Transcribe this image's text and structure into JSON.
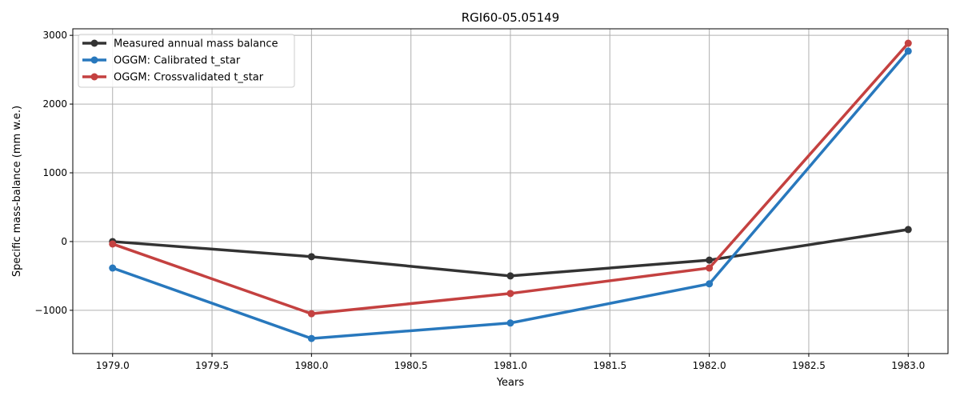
{
  "chart_data": {
    "type": "line",
    "title": "RGI60-05.05149",
    "xlabel": "Years",
    "ylabel": "Specific mass-balance (mm w.e.)",
    "xlim": [
      1978.8,
      1983.2
    ],
    "ylim": [
      -1630,
      3095
    ],
    "grid": true,
    "legend_position": "top-left",
    "xticks": [
      1979.0,
      1979.5,
      1980.0,
      1980.5,
      1981.0,
      1981.5,
      1982.0,
      1982.5,
      1983.0
    ],
    "xtick_labels": [
      "1979.0",
      "1979.5",
      "1980.0",
      "1980.5",
      "1981.0",
      "1981.5",
      "1982.0",
      "1982.5",
      "1983.0"
    ],
    "yticks": [
      -1000,
      0,
      1000,
      2000,
      3000
    ],
    "ytick_labels": [
      "−1000",
      "0",
      "1000",
      "2000",
      "3000"
    ],
    "x": [
      1979,
      1980,
      1981,
      1982,
      1983
    ],
    "series": [
      {
        "name": "Measured annual mass balance",
        "color": "#333333",
        "values": [
          0,
          -220,
          -500,
          -270,
          175
        ]
      },
      {
        "name": "OGGM: Calibrated t_star",
        "color": "#2878bd",
        "values": [
          -385,
          -1410,
          -1185,
          -615,
          2770
        ]
      },
      {
        "name": "OGGM: Crossvalidated t_star",
        "color": "#c44140",
        "values": [
          -35,
          -1050,
          -755,
          -385,
          2885
        ]
      }
    ]
  }
}
